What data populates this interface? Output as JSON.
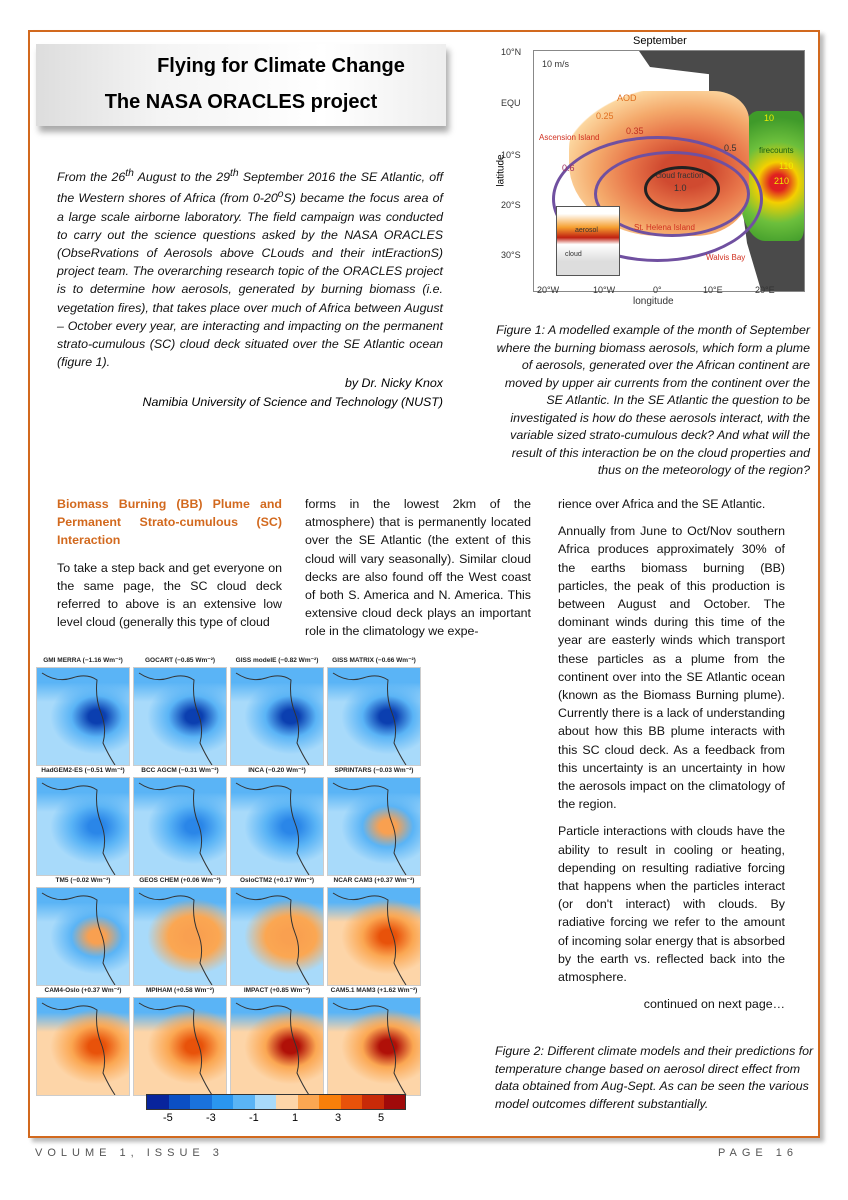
{
  "banner": {
    "title1": "Flying for Climate Change",
    "title2": "The NASA ORACLES project"
  },
  "intro": {
    "p1a": "From the 26",
    "sup1": "th",
    "p1b": " August to the 29",
    "sup2": "th",
    "p1c": " September 2016 the SE Atlantic, off the Western shores of Africa (from 0-20",
    "sup3": "o",
    "p1d": "S) became the focus area of a large scale airborne laboratory.  The field campaign was conducted to carry out the science questions asked by the NASA ORACLES (ObseRvations of Aerosols above CLouds and their intEractionS) project team.  The overarching research topic of the ORACLES project is to determine how aerosols, generated by burning biomass (i.e. vegetation fires), that takes place over much of Africa between August – October every year, are interacting and impacting on the permanent strato-cumulous (SC) cloud deck situated over the SE Atlantic ocean (figure 1).",
    "author": "by Dr. Nicky Knox",
    "affiliation": "Namibia University of Science and Technology (NUST)"
  },
  "figure1": {
    "title": "September",
    "wind": "10 m/s",
    "labels": {
      "aod": "AOD",
      "c025": "0.25",
      "c035": "0.35",
      "c05": "0.5",
      "c06": "0.6",
      "ascension": "Ascension Island",
      "cloud_fraction": "cloud fraction",
      "cf": "1.0",
      "st_helena": "St. Helena Island",
      "walvis": "Walvis Bay",
      "firecounts": "firecounts",
      "f10": "10",
      "f110": "110",
      "f210": "210",
      "aerosol": "aerosol",
      "cloud": "cloud"
    },
    "yaxis": {
      "label": "latitude",
      "ticks": [
        "10°N",
        "EQU",
        "10°S",
        "20°S",
        "30°S"
      ]
    },
    "xaxis": {
      "label": "longitude",
      "ticks": [
        "20°W",
        "10°W",
        "0°",
        "10°E",
        "20°E"
      ]
    },
    "caption": "Figure 1: A modelled example of the month of September where the burning biomass aerosols, which form a plume of aerosols, generated over the African continent are moved by upper air currents from the continent over the SE Atlantic.  In the SE Atlantic the question to be investigated is how do these aerosols interact, with the variable sized strato-cumulous deck?  And what will the result of this interaction be on the cloud properties and thus on the meteorology of the region?"
  },
  "article": {
    "heading": "Biomass Burning (BB) Plume and Permanent Strato-cumulous (SC) Interaction",
    "col1": "To take a step back and get everyone on the same page, the SC cloud deck referred to above is an extensive low level cloud (generally this type of cloud",
    "col2": "forms in the lowest 2km of the atmosphere) that is permanently located over the SE Atlantic (the extent of this cloud will vary seasonally).  Similar cloud decks are also found off the West coast of both S. America and N. America. This extensive cloud deck plays an important role in the climatology we expe-",
    "col3a": "rience over Africa and the SE Atlantic.",
    "col3b": "Annually from June to Oct/Nov southern Africa produces approximately 30% of the earths biomass burning (BB) particles, the peak of this production is between August and October.  The dominant winds during this time of the year are easterly winds which transport these particles as a plume from the continent over into the SE Atlantic ocean (known as the Biomass Burning plume).  Currently there is a lack of understanding about how this BB plume interacts with this SC cloud deck.  As a feedback from this uncertainty is an uncertainty in how the aerosols impact on the climatology of the region.",
    "col3c": "Particle interactions with clouds have the ability to result in cooling or heating, depending on resulting radiative forcing that happens when the particles interact (or don't interact) with clouds.   By radiative forcing we refer to the amount of incoming solar energy that is absorbed by the earth vs. reflected back into the atmosphere.",
    "continued": "continued on next page…"
  },
  "figure2": {
    "panels": [
      {
        "title": "GMI MERRA (−1.16 Wm⁻²)",
        "value": -1.16
      },
      {
        "title": "GOCART (−0.85 Wm⁻²)",
        "value": -0.85
      },
      {
        "title": "GISS modelE (−0.82 Wm⁻²)",
        "value": -0.82
      },
      {
        "title": "GISS MATRIX (−0.66 Wm⁻²)",
        "value": -0.66
      },
      {
        "title": "HadGEM2-ES (−0.51 Wm⁻²)",
        "value": -0.51
      },
      {
        "title": "BCC AGCM (−0.31 Wm⁻²)",
        "value": -0.31
      },
      {
        "title": "INCA (−0.20 Wm⁻²)",
        "value": -0.2
      },
      {
        "title": "SPRINTARS (−0.03 Wm⁻²)",
        "value": -0.03
      },
      {
        "title": "TM5 (−0.02 Wm⁻²)",
        "value": -0.02
      },
      {
        "title": "GEOS CHEM (+0.06 Wm⁻²)",
        "value": 0.06
      },
      {
        "title": "OsloCTM2 (+0.17 Wm⁻²)",
        "value": 0.17
      },
      {
        "title": "NCAR CAM3 (+0.37 Wm⁻²)",
        "value": 0.37
      },
      {
        "title": "CAM4-Oslo (+0.37 Wm⁻²)",
        "value": 0.37
      },
      {
        "title": "MPIHAM (+0.58 Wm⁻²)",
        "value": 0.58
      },
      {
        "title": "IMPACT (+0.85 Wm⁻²)",
        "value": 0.85
      },
      {
        "title": "CAM5.1 MAM3 (+1.62 Wm⁻²)",
        "value": 1.62
      }
    ],
    "colorbar": {
      "colors": [
        "#08249c",
        "#0b4fc4",
        "#1a72dc",
        "#2a96f0",
        "#5ab4f6",
        "#a8dafa",
        "#fdd5a8",
        "#fba752",
        "#f97f0a",
        "#e8520a",
        "#c82a08",
        "#a00a0a"
      ],
      "ticks": [
        "-5",
        "-3",
        "-1",
        "1",
        "3",
        "5"
      ]
    },
    "caption": "Figure 2: Different climate models and their predictions for temperature change based on aerosol direct effect from data obtained from Aug-Sept.  As can be seen the various model outcomes different substantially."
  },
  "footer": {
    "issue": "VOLUME 1, ISSUE 3",
    "page": "PAGE 16"
  },
  "colors": {
    "accent": "#d2691e"
  }
}
